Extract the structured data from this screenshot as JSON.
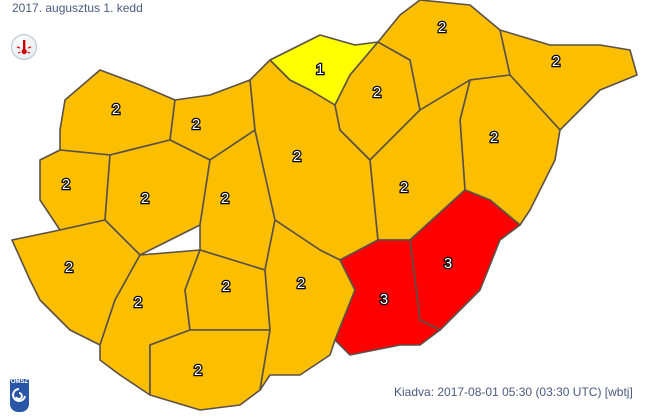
{
  "header": {
    "date": "2017. augusztus 1. kedd"
  },
  "icon": "thermometer-heat-icon",
  "footer": {
    "issued": "Kiadva: 2017-08-01 05:30 (03:30 UTC) [wbtj]",
    "logo_text": "OMSZ"
  },
  "level_colors": {
    "1": "#FFFF00",
    "2": "#FBBF00",
    "3": "#FF0000"
  },
  "regions": [
    {
      "id": "gyor",
      "level": "2"
    },
    {
      "id": "komarom",
      "level": "2"
    },
    {
      "id": "vas",
      "level": "2"
    },
    {
      "id": "veszprem",
      "level": "2"
    },
    {
      "id": "fejer",
      "level": "2"
    },
    {
      "id": "zala",
      "level": "2"
    },
    {
      "id": "somogy",
      "level": "2"
    },
    {
      "id": "tolna",
      "level": "2"
    },
    {
      "id": "baranya",
      "level": "2"
    },
    {
      "id": "pest",
      "level": "2"
    },
    {
      "id": "nograd",
      "level": "1"
    },
    {
      "id": "bacs",
      "level": "2"
    },
    {
      "id": "heves",
      "level": "2"
    },
    {
      "id": "borsod",
      "level": "2"
    },
    {
      "id": "szabolcs",
      "level": "2"
    },
    {
      "id": "hajdu",
      "level": "2"
    },
    {
      "id": "jnsz",
      "level": "2"
    },
    {
      "id": "bekes",
      "level": "3"
    },
    {
      "id": "csongrad",
      "level": "3"
    }
  ]
}
